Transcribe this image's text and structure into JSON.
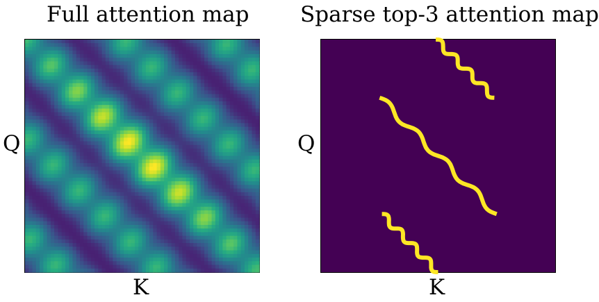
{
  "chart_data": [
    {
      "type": "heatmap",
      "title": "Full attention map",
      "xlabel": "K",
      "ylabel": "Q",
      "colormap": "viridis",
      "description": "Dense attention weights: diagonal bright band with periodic parallel off-diagonal bands",
      "grid": false,
      "ticks": false
    },
    {
      "type": "heatmap",
      "title": "Sparse top-3 attention map",
      "xlabel": "K",
      "ylabel": "Q",
      "colormap": "viridis",
      "background_color": "#440154",
      "mark_color": "#fde725",
      "description": "Binary mask: three selected keys per query forming three wavy parallel diagonal traces",
      "grid": false,
      "ticks": false
    }
  ]
}
